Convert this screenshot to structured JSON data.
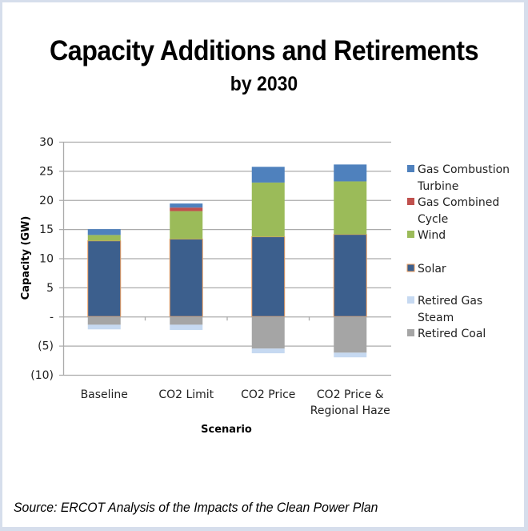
{
  "chart_data": {
    "type": "bar",
    "stacked": true,
    "title": "Capacity Additions and Retirements",
    "subtitle": "by 2030",
    "xlabel": "Scenario",
    "ylabel": "Capacity (GW)",
    "ylim": [
      -10,
      30
    ],
    "yticks": [
      30,
      25,
      20,
      15,
      10,
      5,
      0,
      -5,
      -10
    ],
    "ytick_labels": [
      "30",
      "25",
      "20",
      "15",
      "10",
      "5",
      "-",
      "(5)",
      "(10)"
    ],
    "grid": true,
    "legend_position": "right",
    "categories": [
      [
        "Baseline"
      ],
      [
        "CO2 Limit"
      ],
      [
        "CO2 Price"
      ],
      [
        "CO2 Price &",
        "Regional Haze"
      ]
    ],
    "series": [
      {
        "name": "Solar",
        "legend_lines": [
          "Solar"
        ],
        "color": "#3C5F8D",
        "border": "#F0A060",
        "values": [
          13.0,
          13.3,
          13.7,
          14.1
        ]
      },
      {
        "name": "Wind",
        "legend_lines": [
          "Wind"
        ],
        "color": "#9BBB59",
        "values": [
          1.0,
          4.8,
          9.3,
          9.1
        ]
      },
      {
        "name": "Gas Combined Cycle",
        "legend_lines": [
          "Gas Combined",
          "Cycle"
        ],
        "color": "#C0504D",
        "values": [
          0.0,
          0.6,
          0.0,
          0.0
        ]
      },
      {
        "name": "Gas Combustion Turbine",
        "legend_lines": [
          "Gas Combustion",
          "Turbine"
        ],
        "color": "#4F81BD",
        "values": [
          1.0,
          0.7,
          2.7,
          2.9
        ]
      },
      {
        "name": "Retired Coal",
        "legend_lines": [
          "Retired Coal"
        ],
        "color": "#A5A5A5",
        "values": [
          -1.4,
          -1.4,
          -5.5,
          -6.2
        ]
      },
      {
        "name": "Retired Gas Steam",
        "legend_lines": [
          "Retired Gas",
          "Steam"
        ],
        "color": "#C6D9F1",
        "values": [
          -0.8,
          -0.9,
          -0.8,
          -0.8
        ]
      }
    ],
    "legend_order": [
      "Gas Combustion Turbine",
      "Gas Combined Cycle",
      "Wind",
      "Solar",
      "Retired Gas Steam",
      "Retired Coal"
    ]
  },
  "source": "Source: ERCOT Analysis of the Impacts of the Clean Power Plan"
}
